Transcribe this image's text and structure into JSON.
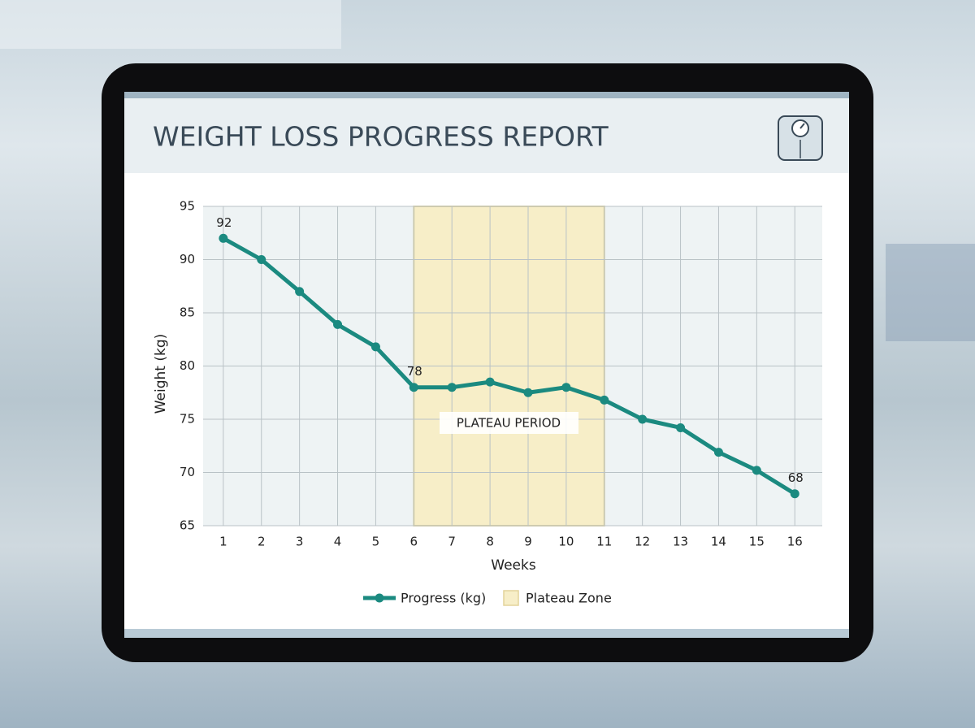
{
  "chart_data": {
    "type": "line",
    "title": "WEIGHT LOSS PROGRESS REPORT",
    "x_label": "Weeks",
    "y_label": "Weight (kg)",
    "x": [
      1,
      2,
      3,
      4,
      5,
      6,
      7,
      8,
      9,
      10,
      11,
      12,
      13,
      14,
      15,
      16
    ],
    "series": [
      {
        "name": "Progress (kg)",
        "color": "#1b8a80",
        "values": [
          92,
          90,
          87,
          83.9,
          81.8,
          78,
          78,
          78.5,
          77.5,
          78,
          76.8,
          75,
          74.2,
          71.9,
          70.2,
          68
        ]
      }
    ],
    "labeled_points": [
      0,
      5,
      15
    ],
    "plateau": {
      "name": "Plateau Zone",
      "x": [
        6,
        11
      ],
      "color": "#f7eec8"
    },
    "annotation": "PLATEAU PERIOD",
    "xlim": [
      0.47,
      16.72
    ],
    "xticks": [
      1,
      2,
      3,
      4,
      5,
      6,
      7,
      8,
      9,
      10,
      11,
      12,
      13,
      14,
      15,
      16
    ],
    "ylim": [
      65,
      95
    ],
    "yticks": [
      65,
      70,
      75,
      80,
      85,
      90,
      95
    ],
    "grid": true
  }
}
